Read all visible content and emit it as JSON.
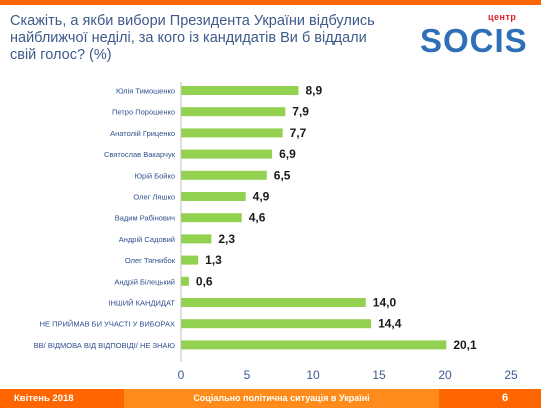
{
  "header": {
    "title": "Скажіть, а якби вибори Президента України відбулись найближчої неділі, за кого із кандидатів Ви б віддали свій голос? (%)"
  },
  "logo": {
    "main": "SOCIS",
    "sub": "центр"
  },
  "footer": {
    "date": "Квітень 2018",
    "caption": "Соціально політична ситуація в Україні",
    "page": "6"
  },
  "colors": {
    "bar": "#92d050",
    "footer": "#ff6600",
    "footer_mid": "#ff8c1a",
    "logo_blue": "#2e6fb7",
    "logo_red": "#e31e24",
    "title": "#3d5a8a",
    "label": "#2f4f8f",
    "axis_text": "#3b5a92"
  },
  "chart_data": {
    "type": "bar",
    "orientation": "horizontal",
    "categories": [
      "Юлія Тимошенко",
      "Петро Порошенко",
      "Анатолій Гриценко",
      "Святослав Вакарчук",
      "Юрій Бойко",
      "Олег Ляшко",
      "Вадим Рабінович",
      "Андрій Садовий",
      "Олег Тягнибок",
      "Андрій Білецький",
      "ІНШИЙ КАНДИДАТ",
      "НЕ ПРИЙМАВ БИ УЧАСТІ У ВИБОРАХ",
      "ВВ/ ВІДМОВА ВІД ВІДПОВІДІ/ НЕ ЗНАЮ"
    ],
    "values": [
      8.9,
      7.9,
      7.7,
      6.9,
      6.5,
      4.9,
      4.6,
      2.3,
      1.3,
      0.6,
      14.0,
      14.4,
      20.1
    ],
    "value_labels": [
      "8,9",
      "7,9",
      "7,7",
      "6,9",
      "6,5",
      "4,9",
      "4,6",
      "2,3",
      "1,3",
      "0,6",
      "14,0",
      "14,4",
      "20,1"
    ],
    "xlim": [
      0,
      25
    ],
    "xticks": [
      "0",
      "5",
      "10",
      "15",
      "20",
      "25"
    ],
    "xtick_values": [
      0,
      5,
      10,
      15,
      20,
      25
    ],
    "grid": false,
    "legend": "none"
  }
}
